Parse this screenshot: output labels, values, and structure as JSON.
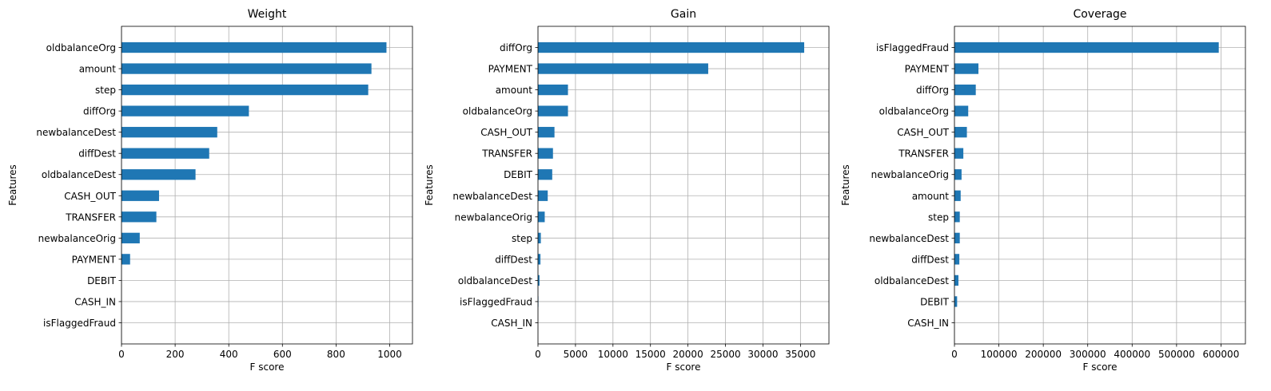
{
  "chart_data": [
    {
      "type": "bar",
      "orientation": "horizontal",
      "title": "Weight",
      "xlabel": "F score",
      "ylabel": "Features",
      "xlim": [
        0,
        1085
      ],
      "xticks": [
        0,
        200,
        400,
        600,
        800,
        1000
      ],
      "grid": true,
      "bar_color": "#1f77b4",
      "categories": [
        "oldbalanceOrg",
        "amount",
        "step",
        "diffOrg",
        "newbalanceDest",
        "diffDest",
        "oldbalanceDest",
        "CASH_OUT",
        "TRANSFER",
        "newbalanceOrig",
        "PAYMENT",
        "DEBIT",
        "CASH_IN",
        "isFlaggedFraud"
      ],
      "values": [
        988,
        932,
        920,
        475,
        357,
        327,
        276,
        140,
        130,
        68,
        32,
        0,
        0,
        0
      ]
    },
    {
      "type": "bar",
      "orientation": "horizontal",
      "title": "Gain",
      "xlabel": "F score",
      "ylabel": "Features",
      "xlim": [
        0,
        38800
      ],
      "xticks": [
        0,
        5000,
        10000,
        15000,
        20000,
        25000,
        30000,
        35000
      ],
      "grid": true,
      "bar_color": "#1f77b4",
      "categories": [
        "diffOrg",
        "PAYMENT",
        "amount",
        "oldbalanceOrg",
        "CASH_OUT",
        "TRANSFER",
        "DEBIT",
        "newbalanceDest",
        "newbalanceOrig",
        "step",
        "diffDest",
        "oldbalanceDest",
        "isFlaggedFraud",
        "CASH_IN"
      ],
      "values": [
        35500,
        22700,
        4000,
        4000,
        2200,
        2000,
        1900,
        1300,
        900,
        380,
        330,
        200,
        60,
        0
      ]
    },
    {
      "type": "bar",
      "orientation": "horizontal",
      "title": "Coverage",
      "xlabel": "F score",
      "ylabel": "Features",
      "xlim": [
        0,
        655000
      ],
      "xticks": [
        0,
        100000,
        200000,
        300000,
        400000,
        500000,
        600000
      ],
      "grid": true,
      "bar_color": "#1f77b4",
      "categories": [
        "isFlaggedFraud",
        "PAYMENT",
        "diffOrg",
        "oldbalanceOrg",
        "CASH_OUT",
        "TRANSFER",
        "newbalanceOrig",
        "amount",
        "step",
        "newbalanceDest",
        "diffDest",
        "oldbalanceDest",
        "DEBIT",
        "CASH_IN"
      ],
      "values": [
        595000,
        54000,
        48000,
        31000,
        28000,
        20000,
        16000,
        14000,
        12000,
        12000,
        11000,
        9000,
        6000,
        0
      ]
    }
  ]
}
